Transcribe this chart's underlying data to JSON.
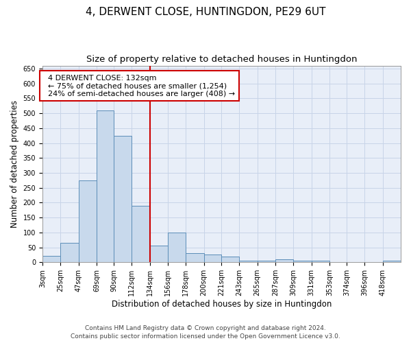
{
  "title": "4, DERWENT CLOSE, HUNTINGDON, PE29 6UT",
  "subtitle": "Size of property relative to detached houses in Huntingdon",
  "xlabel": "Distribution of detached houses by size in Huntingdon",
  "ylabel": "Number of detached properties",
  "property_label": "4 DERWENT CLOSE: 132sqm",
  "pct_smaller": "← 75% of detached houses are smaller (1,254)",
  "pct_larger": "24% of semi-detached houses are larger (408) →",
  "vline_x": 134,
  "bar_color": "#c8d9ec",
  "bar_edge_color": "#5b8db8",
  "vline_color": "#cc0000",
  "annotation_box_edge": "#cc0000",
  "grid_color": "#c8d4e8",
  "background_color": "#e8eef8",
  "bins": [
    3,
    25,
    47,
    69,
    90,
    112,
    134,
    156,
    178,
    200,
    221,
    243,
    265,
    287,
    309,
    331,
    353,
    374,
    396,
    418,
    440
  ],
  "counts": [
    22,
    65,
    275,
    510,
    425,
    190,
    55,
    100,
    30,
    25,
    20,
    5,
    5,
    10,
    5,
    5,
    0,
    0,
    0,
    5
  ],
  "ylim": [
    0,
    660
  ],
  "yticks": [
    0,
    50,
    100,
    150,
    200,
    250,
    300,
    350,
    400,
    450,
    500,
    550,
    600,
    650
  ],
  "footer1": "Contains HM Land Registry data © Crown copyright and database right 2024.",
  "footer2": "Contains public sector information licensed under the Open Government Licence v3.0.",
  "title_fontsize": 11,
  "subtitle_fontsize": 9.5,
  "label_fontsize": 8.5,
  "tick_fontsize": 7,
  "footer_fontsize": 6.5,
  "annotation_fontsize": 8
}
